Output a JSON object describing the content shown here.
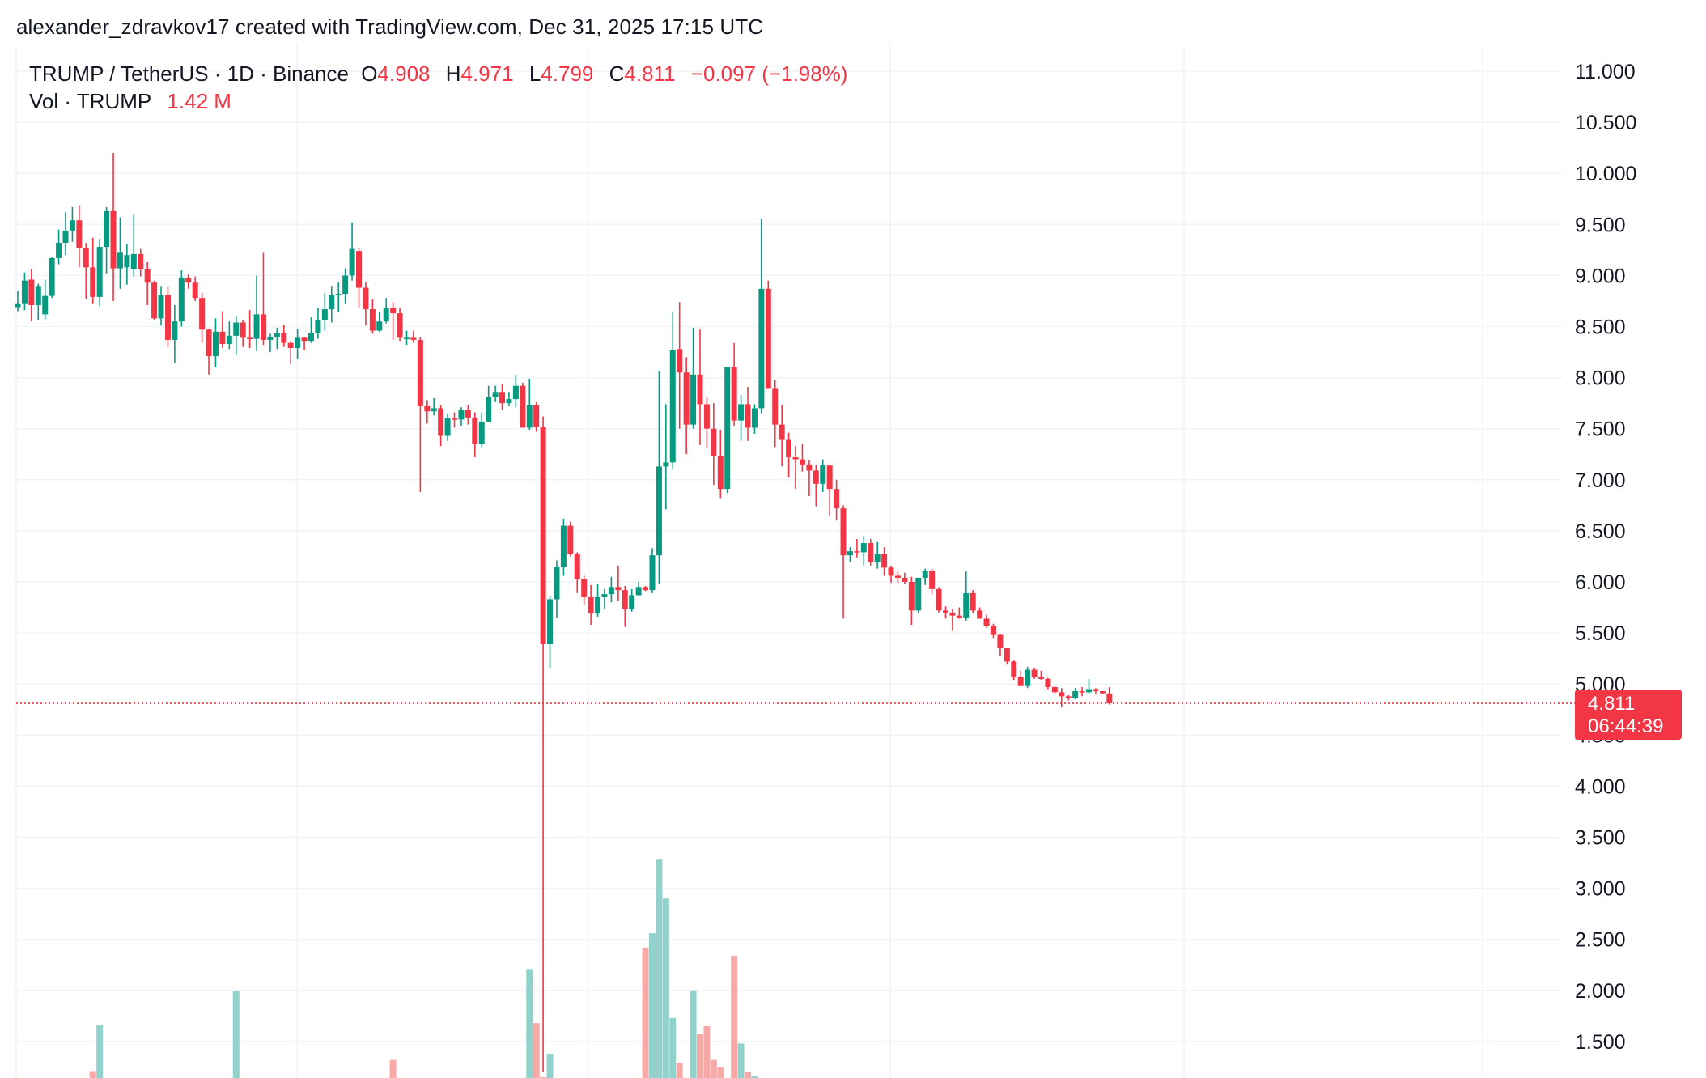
{
  "attribution": "alexander_zdravkov17 created with TradingView.com, Dec 31, 2025 17:15 UTC",
  "legend": {
    "symbol": "TRUMP / TetherUS · 1D · Binance",
    "o_label": "O",
    "o_value": "4.908",
    "h_label": "H",
    "h_value": "4.971",
    "l_label": "L",
    "l_value": "4.799",
    "c_label": "C",
    "c_value": "4.811",
    "change": "−0.097 (−1.98%)",
    "vol_label": "Vol · TRUMP",
    "vol_value": "1.42 M"
  },
  "last_price": {
    "price": "4.811",
    "countdown": "06:44:39",
    "value": 4.811
  },
  "colors": {
    "up": "#089981",
    "down": "#f23645",
    "vol_up": "#92d2cc",
    "vol_down": "#f7a9a7",
    "grid": "#f0f3fa"
  },
  "chart_data": {
    "type": "candlestick",
    "title": "TRUMP / TetherUS · 1D · Binance",
    "y_axis_ticks": [
      "11.000",
      "10.500",
      "10.000",
      "9.500",
      "9.000",
      "8.500",
      "8.000",
      "7.500",
      "7.000",
      "6.500",
      "6.000",
      "5.500",
      "5.000",
      "4.500",
      "4.000",
      "3.500",
      "3.000",
      "2.500",
      "2.000",
      "1.500"
    ],
    "ylim": [
      1.1,
      11.25
    ],
    "candles": [
      {
        "o": 8.69,
        "h": 8.85,
        "l": 8.65,
        "c": 8.72
      },
      {
        "o": 8.72,
        "h": 9.03,
        "l": 8.66,
        "c": 8.95
      },
      {
        "o": 8.96,
        "h": 9.06,
        "l": 8.55,
        "c": 8.71
      },
      {
        "o": 8.71,
        "h": 8.92,
        "l": 8.56,
        "c": 8.89
      },
      {
        "o": 8.62,
        "h": 8.96,
        "l": 8.57,
        "c": 8.8
      },
      {
        "o": 8.8,
        "h": 9.18,
        "l": 8.78,
        "c": 9.17
      },
      {
        "o": 9.17,
        "h": 9.45,
        "l": 9.11,
        "c": 9.32
      },
      {
        "o": 9.32,
        "h": 9.62,
        "l": 9.2,
        "c": 9.44
      },
      {
        "o": 9.44,
        "h": 9.67,
        "l": 9.33,
        "c": 9.54
      },
      {
        "o": 9.54,
        "h": 9.69,
        "l": 9.08,
        "c": 9.27
      },
      {
        "o": 9.27,
        "h": 9.32,
        "l": 8.77,
        "c": 9.08
      },
      {
        "o": 9.08,
        "h": 9.37,
        "l": 8.72,
        "c": 8.79
      },
      {
        "o": 8.79,
        "h": 9.36,
        "l": 8.7,
        "c": 9.28
      },
      {
        "o": 9.28,
        "h": 9.67,
        "l": 9.02,
        "c": 9.63
      },
      {
        "o": 9.63,
        "h": 10.2,
        "l": 8.75,
        "c": 9.07
      },
      {
        "o": 9.07,
        "h": 9.57,
        "l": 8.87,
        "c": 9.23
      },
      {
        "o": 9.08,
        "h": 9.31,
        "l": 8.91,
        "c": 9.2
      },
      {
        "o": 9.06,
        "h": 9.6,
        "l": 8.99,
        "c": 9.21
      },
      {
        "o": 9.21,
        "h": 9.26,
        "l": 8.99,
        "c": 9.06
      },
      {
        "o": 9.06,
        "h": 9.13,
        "l": 8.71,
        "c": 8.93
      },
      {
        "o": 8.93,
        "h": 8.95,
        "l": 8.56,
        "c": 8.58
      },
      {
        "o": 8.58,
        "h": 8.89,
        "l": 8.51,
        "c": 8.81
      },
      {
        "o": 8.81,
        "h": 8.89,
        "l": 8.3,
        "c": 8.37
      },
      {
        "o": 8.37,
        "h": 8.71,
        "l": 8.14,
        "c": 8.55
      },
      {
        "o": 8.55,
        "h": 9.05,
        "l": 8.5,
        "c": 8.98
      },
      {
        "o": 8.98,
        "h": 9.01,
        "l": 8.87,
        "c": 8.93
      },
      {
        "o": 8.93,
        "h": 8.99,
        "l": 8.75,
        "c": 8.78
      },
      {
        "o": 8.78,
        "h": 8.83,
        "l": 8.34,
        "c": 8.47
      },
      {
        "o": 8.47,
        "h": 8.48,
        "l": 8.03,
        "c": 8.21
      },
      {
        "o": 8.21,
        "h": 8.58,
        "l": 8.1,
        "c": 8.45
      },
      {
        "o": 8.45,
        "h": 8.65,
        "l": 8.29,
        "c": 8.33
      },
      {
        "o": 8.33,
        "h": 8.55,
        "l": 8.28,
        "c": 8.41
      },
      {
        "o": 8.41,
        "h": 8.6,
        "l": 8.22,
        "c": 8.54
      },
      {
        "o": 8.54,
        "h": 8.56,
        "l": 8.3,
        "c": 8.39
      },
      {
        "o": 8.39,
        "h": 8.66,
        "l": 8.29,
        "c": 8.38
      },
      {
        "o": 8.38,
        "h": 9.0,
        "l": 8.26,
        "c": 8.62
      },
      {
        "o": 8.62,
        "h": 9.23,
        "l": 8.32,
        "c": 8.37
      },
      {
        "o": 8.37,
        "h": 8.43,
        "l": 8.25,
        "c": 8.4
      },
      {
        "o": 8.4,
        "h": 8.49,
        "l": 8.28,
        "c": 8.44
      },
      {
        "o": 8.44,
        "h": 8.52,
        "l": 8.3,
        "c": 8.34
      },
      {
        "o": 8.34,
        "h": 8.36,
        "l": 8.13,
        "c": 8.29
      },
      {
        "o": 8.29,
        "h": 8.48,
        "l": 8.18,
        "c": 8.39
      },
      {
        "o": 8.39,
        "h": 8.4,
        "l": 8.27,
        "c": 8.36
      },
      {
        "o": 8.36,
        "h": 8.59,
        "l": 8.34,
        "c": 8.44
      },
      {
        "o": 8.44,
        "h": 8.68,
        "l": 8.38,
        "c": 8.56
      },
      {
        "o": 8.56,
        "h": 8.83,
        "l": 8.46,
        "c": 8.67
      },
      {
        "o": 8.67,
        "h": 8.89,
        "l": 8.54,
        "c": 8.81
      },
      {
        "o": 8.81,
        "h": 8.93,
        "l": 8.64,
        "c": 8.82
      },
      {
        "o": 8.82,
        "h": 9.07,
        "l": 8.72,
        "c": 9.0
      },
      {
        "o": 9.0,
        "h": 9.52,
        "l": 8.95,
        "c": 9.26
      },
      {
        "o": 9.24,
        "h": 9.27,
        "l": 8.69,
        "c": 8.88
      },
      {
        "o": 8.88,
        "h": 8.94,
        "l": 8.51,
        "c": 8.67
      },
      {
        "o": 8.67,
        "h": 8.77,
        "l": 8.43,
        "c": 8.46
      },
      {
        "o": 8.46,
        "h": 8.64,
        "l": 8.45,
        "c": 8.55
      },
      {
        "o": 8.55,
        "h": 8.78,
        "l": 8.53,
        "c": 8.68
      },
      {
        "o": 8.68,
        "h": 8.74,
        "l": 8.37,
        "c": 8.63
      },
      {
        "o": 8.63,
        "h": 8.68,
        "l": 8.36,
        "c": 8.39
      },
      {
        "o": 8.39,
        "h": 8.46,
        "l": 8.32,
        "c": 8.39
      },
      {
        "o": 8.39,
        "h": 8.46,
        "l": 8.34,
        "c": 8.37
      },
      {
        "o": 8.37,
        "h": 8.4,
        "l": 6.88,
        "c": 7.72
      },
      {
        "o": 7.72,
        "h": 7.78,
        "l": 7.55,
        "c": 7.67
      },
      {
        "o": 7.67,
        "h": 7.8,
        "l": 7.63,
        "c": 7.7
      },
      {
        "o": 7.7,
        "h": 7.73,
        "l": 7.33,
        "c": 7.43
      },
      {
        "o": 7.43,
        "h": 7.65,
        "l": 7.38,
        "c": 7.6
      },
      {
        "o": 7.6,
        "h": 7.66,
        "l": 7.51,
        "c": 7.59
      },
      {
        "o": 7.59,
        "h": 7.71,
        "l": 7.53,
        "c": 7.68
      },
      {
        "o": 7.68,
        "h": 7.73,
        "l": 7.54,
        "c": 7.61
      },
      {
        "o": 7.61,
        "h": 7.66,
        "l": 7.22,
        "c": 7.35
      },
      {
        "o": 7.35,
        "h": 7.66,
        "l": 7.32,
        "c": 7.57
      },
      {
        "o": 7.57,
        "h": 7.92,
        "l": 7.57,
        "c": 7.81
      },
      {
        "o": 7.81,
        "h": 7.92,
        "l": 7.76,
        "c": 7.86
      },
      {
        "o": 7.86,
        "h": 7.94,
        "l": 7.68,
        "c": 7.75
      },
      {
        "o": 7.75,
        "h": 7.86,
        "l": 7.72,
        "c": 7.79
      },
      {
        "o": 7.79,
        "h": 8.03,
        "l": 7.71,
        "c": 7.92
      },
      {
        "o": 7.92,
        "h": 7.95,
        "l": 7.51,
        "c": 7.51
      },
      {
        "o": 7.51,
        "h": 7.99,
        "l": 7.49,
        "c": 7.73
      },
      {
        "o": 7.73,
        "h": 7.76,
        "l": 7.47,
        "c": 7.52
      },
      {
        "o": 7.52,
        "h": 7.62,
        "l": 1.2,
        "c": 5.39
      },
      {
        "o": 5.39,
        "h": 5.86,
        "l": 5.15,
        "c": 5.83
      },
      {
        "o": 5.83,
        "h": 6.21,
        "l": 5.65,
        "c": 6.15
      },
      {
        "o": 6.15,
        "h": 6.62,
        "l": 6.06,
        "c": 6.55
      },
      {
        "o": 6.55,
        "h": 6.59,
        "l": 6.25,
        "c": 6.27
      },
      {
        "o": 6.27,
        "h": 6.29,
        "l": 5.89,
        "c": 6.03
      },
      {
        "o": 6.03,
        "h": 6.06,
        "l": 5.78,
        "c": 5.85
      },
      {
        "o": 5.85,
        "h": 5.97,
        "l": 5.58,
        "c": 5.69
      },
      {
        "o": 5.69,
        "h": 5.98,
        "l": 5.66,
        "c": 5.85
      },
      {
        "o": 5.85,
        "h": 5.93,
        "l": 5.73,
        "c": 5.88
      },
      {
        "o": 5.88,
        "h": 6.05,
        "l": 5.8,
        "c": 5.95
      },
      {
        "o": 5.95,
        "h": 6.16,
        "l": 5.81,
        "c": 5.92
      },
      {
        "o": 5.92,
        "h": 5.96,
        "l": 5.56,
        "c": 5.73
      },
      {
        "o": 5.73,
        "h": 5.93,
        "l": 5.71,
        "c": 5.87
      },
      {
        "o": 5.87,
        "h": 6.0,
        "l": 5.86,
        "c": 5.95
      },
      {
        "o": 5.95,
        "h": 5.96,
        "l": 5.91,
        "c": 5.92
      },
      {
        "o": 5.92,
        "h": 6.33,
        "l": 5.89,
        "c": 6.26
      },
      {
        "o": 6.26,
        "h": 8.06,
        "l": 5.98,
        "c": 7.13
      },
      {
        "o": 7.13,
        "h": 7.74,
        "l": 6.71,
        "c": 7.17
      },
      {
        "o": 7.17,
        "h": 8.65,
        "l": 7.1,
        "c": 8.27
      },
      {
        "o": 8.28,
        "h": 8.74,
        "l": 7.5,
        "c": 8.05
      },
      {
        "o": 8.05,
        "h": 8.2,
        "l": 7.25,
        "c": 7.54
      },
      {
        "o": 7.54,
        "h": 8.49,
        "l": 7.5,
        "c": 8.03
      },
      {
        "o": 8.03,
        "h": 8.47,
        "l": 7.34,
        "c": 7.74
      },
      {
        "o": 7.74,
        "h": 7.81,
        "l": 7.31,
        "c": 7.5
      },
      {
        "o": 7.5,
        "h": 7.75,
        "l": 6.95,
        "c": 7.23
      },
      {
        "o": 7.23,
        "h": 7.49,
        "l": 6.82,
        "c": 6.91
      },
      {
        "o": 6.91,
        "h": 8.1,
        "l": 6.87,
        "c": 8.1
      },
      {
        "o": 8.1,
        "h": 8.34,
        "l": 7.53,
        "c": 7.58
      },
      {
        "o": 7.58,
        "h": 7.83,
        "l": 7.38,
        "c": 7.74
      },
      {
        "o": 7.74,
        "h": 7.91,
        "l": 7.38,
        "c": 7.51
      },
      {
        "o": 7.51,
        "h": 7.74,
        "l": 7.45,
        "c": 7.7
      },
      {
        "o": 7.7,
        "h": 9.56,
        "l": 7.65,
        "c": 8.87
      },
      {
        "o": 8.87,
        "h": 8.95,
        "l": 7.92,
        "c": 7.89
      },
      {
        "o": 7.89,
        "h": 7.98,
        "l": 7.32,
        "c": 7.54
      },
      {
        "o": 7.54,
        "h": 7.73,
        "l": 7.13,
        "c": 7.39
      },
      {
        "o": 7.39,
        "h": 7.46,
        "l": 7.02,
        "c": 7.22
      },
      {
        "o": 7.22,
        "h": 7.33,
        "l": 6.91,
        "c": 7.2
      },
      {
        "o": 7.2,
        "h": 7.35,
        "l": 7.08,
        "c": 7.15
      },
      {
        "o": 7.15,
        "h": 7.19,
        "l": 6.84,
        "c": 7.09
      },
      {
        "o": 7.09,
        "h": 7.15,
        "l": 6.74,
        "c": 6.96
      },
      {
        "o": 6.96,
        "h": 7.2,
        "l": 6.88,
        "c": 7.14
      },
      {
        "o": 7.14,
        "h": 7.15,
        "l": 6.65,
        "c": 6.91
      },
      {
        "o": 6.91,
        "h": 7.0,
        "l": 6.6,
        "c": 6.72
      },
      {
        "o": 6.72,
        "h": 6.75,
        "l": 5.64,
        "c": 6.26
      },
      {
        "o": 6.26,
        "h": 6.34,
        "l": 6.19,
        "c": 6.3
      },
      {
        "o": 6.3,
        "h": 6.42,
        "l": 6.24,
        "c": 6.29
      },
      {
        "o": 6.29,
        "h": 6.45,
        "l": 6.16,
        "c": 6.38
      },
      {
        "o": 6.38,
        "h": 6.42,
        "l": 6.16,
        "c": 6.19
      },
      {
        "o": 6.19,
        "h": 6.39,
        "l": 6.13,
        "c": 6.27
      },
      {
        "o": 6.27,
        "h": 6.34,
        "l": 6.06,
        "c": 6.14
      },
      {
        "o": 6.14,
        "h": 6.16,
        "l": 5.99,
        "c": 6.06
      },
      {
        "o": 6.06,
        "h": 6.1,
        "l": 5.99,
        "c": 6.04
      },
      {
        "o": 6.04,
        "h": 6.09,
        "l": 5.98,
        "c": 6.0
      },
      {
        "o": 6.0,
        "h": 6.05,
        "l": 5.58,
        "c": 5.72
      },
      {
        "o": 5.72,
        "h": 6.02,
        "l": 5.7,
        "c": 6.04
      },
      {
        "o": 6.04,
        "h": 6.13,
        "l": 5.97,
        "c": 6.11
      },
      {
        "o": 6.11,
        "h": 6.13,
        "l": 5.88,
        "c": 5.93
      },
      {
        "o": 5.93,
        "h": 5.95,
        "l": 5.7,
        "c": 5.72
      },
      {
        "o": 5.72,
        "h": 5.76,
        "l": 5.64,
        "c": 5.7
      },
      {
        "o": 5.7,
        "h": 5.73,
        "l": 5.52,
        "c": 5.67
      },
      {
        "o": 5.67,
        "h": 5.75,
        "l": 5.64,
        "c": 5.65
      },
      {
        "o": 5.65,
        "h": 6.1,
        "l": 5.62,
        "c": 5.89
      },
      {
        "o": 5.89,
        "h": 5.92,
        "l": 5.69,
        "c": 5.72
      },
      {
        "o": 5.72,
        "h": 5.75,
        "l": 5.64,
        "c": 5.64
      },
      {
        "o": 5.64,
        "h": 5.68,
        "l": 5.55,
        "c": 5.57
      },
      {
        "o": 5.57,
        "h": 5.59,
        "l": 5.45,
        "c": 5.48
      },
      {
        "o": 5.48,
        "h": 5.49,
        "l": 5.27,
        "c": 5.35
      },
      {
        "o": 5.35,
        "h": 5.35,
        "l": 5.19,
        "c": 5.22
      },
      {
        "o": 5.22,
        "h": 5.23,
        "l": 5.04,
        "c": 5.07
      },
      {
        "o": 5.07,
        "h": 5.13,
        "l": 4.98,
        "c": 4.98
      },
      {
        "o": 4.98,
        "h": 5.17,
        "l": 4.96,
        "c": 5.14
      },
      {
        "o": 5.14,
        "h": 5.16,
        "l": 5.05,
        "c": 5.07
      },
      {
        "o": 5.07,
        "h": 5.13,
        "l": 5.04,
        "c": 5.05
      },
      {
        "o": 5.05,
        "h": 5.06,
        "l": 4.95,
        "c": 4.97
      },
      {
        "o": 4.97,
        "h": 4.98,
        "l": 4.9,
        "c": 4.92
      },
      {
        "o": 4.92,
        "h": 4.96,
        "l": 4.77,
        "c": 4.88
      },
      {
        "o": 4.88,
        "h": 4.89,
        "l": 4.84,
        "c": 4.86
      },
      {
        "o": 4.86,
        "h": 4.96,
        "l": 4.85,
        "c": 4.93
      },
      {
        "o": 4.93,
        "h": 4.97,
        "l": 4.88,
        "c": 4.92
      },
      {
        "o": 4.92,
        "h": 5.05,
        "l": 4.9,
        "c": 4.95
      },
      {
        "o": 4.95,
        "h": 4.96,
        "l": 4.9,
        "c": 4.93
      },
      {
        "o": 4.93,
        "h": 4.93,
        "l": 4.9,
        "c": 4.91
      },
      {
        "o": 4.908,
        "h": 4.971,
        "l": 4.799,
        "c": 4.811
      }
    ],
    "volume": [
      {
        "i": 11,
        "v": 1.21
      },
      {
        "i": 12,
        "v": 1.66
      },
      {
        "i": 13,
        "v": 1.13
      },
      {
        "i": 20,
        "v": 1.13
      },
      {
        "i": 32,
        "v": 1.99
      },
      {
        "i": 55,
        "v": 1.32
      },
      {
        "i": 72,
        "v": 1.12
      },
      {
        "i": 75,
        "v": 2.21
      },
      {
        "i": 76,
        "v": 1.68
      },
      {
        "i": 77,
        "v": 1.15
      },
      {
        "i": 78,
        "v": 1.38
      },
      {
        "i": 92,
        "v": 2.42
      },
      {
        "i": 93,
        "v": 2.56
      },
      {
        "i": 94,
        "v": 3.28
      },
      {
        "i": 95,
        "v": 2.9
      },
      {
        "i": 96,
        "v": 1.73
      },
      {
        "i": 97,
        "v": 1.29
      },
      {
        "i": 99,
        "v": 2.0
      },
      {
        "i": 100,
        "v": 1.57
      },
      {
        "i": 101,
        "v": 1.65
      },
      {
        "i": 102,
        "v": 1.32
      },
      {
        "i": 103,
        "v": 1.25
      },
      {
        "i": 105,
        "v": 2.34
      },
      {
        "i": 106,
        "v": 1.48
      },
      {
        "i": 107,
        "v": 1.2
      },
      {
        "i": 108,
        "v": 1.16
      }
    ]
  }
}
